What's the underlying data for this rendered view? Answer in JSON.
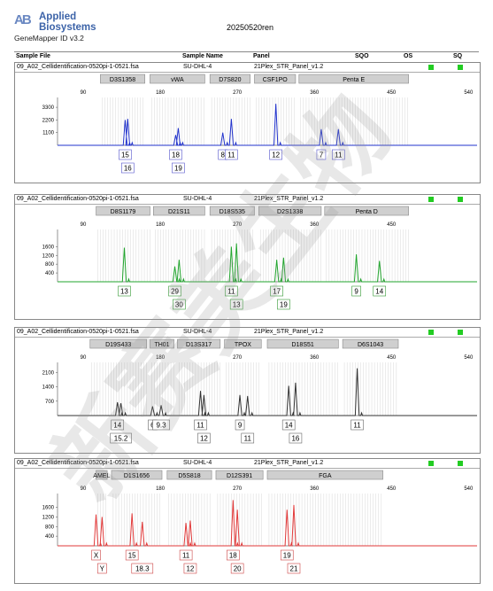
{
  "brand": {
    "mark": "AB",
    "line1": "Applied",
    "line2": "Biosystems",
    "app": "GeneMapper ID v3.2"
  },
  "run_name": "20250520ren",
  "header": {
    "sample_file": "Sample File",
    "sample_name": "Sample Name",
    "panel": "Panel",
    "sqo": "SQO",
    "os": "OS",
    "sq": "SQ"
  },
  "colors": {
    "blue": "#2233cc",
    "green": "#22a52e",
    "black": "#333333",
    "red": "#e23a3a",
    "flag": "#22cc22"
  },
  "panels": [
    {
      "file": "09_A02_Cellidentification-0520pi-1-0521.fsa",
      "name": "SU-DHL-4",
      "panel": "21Plex_STR_Panel_v1.2"
    },
    {
      "file": "09_A02_Cellidentification-0520pi-1-0521.fsa",
      "name": "SU-DHL-4",
      "panel": "21Plex_STR_Panel_v1.2"
    },
    {
      "file": "09_A02_Cellidentification-0520pi-1-0521.fsa",
      "name": "SU-DHL-4",
      "panel": "21Plex_STR_Panel_v1.2"
    },
    {
      "file": "09_A02_Cellidentification-0520pi-1-0521.fsa",
      "name": "SU-DHL-4",
      "panel": "21Plex_STR_Panel_v1.2"
    }
  ],
  "watermark": "新赛美生物",
  "chart_data": [
    {
      "type": "line",
      "color": "blue",
      "xlim": [
        60,
        550
      ],
      "x_ticks": [
        90,
        180,
        270,
        360,
        450,
        540
      ],
      "ylim": [
        0,
        4000
      ],
      "y_ticks": [
        1100,
        2200,
        3300
      ],
      "markers": [
        {
          "name": "D3S1358",
          "start": 110,
          "end": 162
        },
        {
          "name": "vWA",
          "start": 168,
          "end": 232
        },
        {
          "name": "D7S820",
          "start": 238,
          "end": 285
        },
        {
          "name": "CSF1PO",
          "start": 290,
          "end": 338
        },
        {
          "name": "Penta E",
          "start": 342,
          "end": 470
        }
      ],
      "peaks": [
        {
          "x": 139,
          "y": 2200,
          "label": "15",
          "row": 1
        },
        {
          "x": 142,
          "y": 2300,
          "label": "16",
          "row": 2
        },
        {
          "x": 198,
          "y": 900,
          "label": "18",
          "row": 1
        },
        {
          "x": 201,
          "y": 1500,
          "label": "19",
          "row": 2
        },
        {
          "x": 253,
          "y": 1100,
          "label": "8",
          "row": 1
        },
        {
          "x": 263,
          "y": 2300,
          "label": "11",
          "row": 1
        },
        {
          "x": 315,
          "y": 3600,
          "label": "12",
          "row": 1
        },
        {
          "x": 368,
          "y": 1400,
          "label": "7",
          "row": 1
        },
        {
          "x": 388,
          "y": 1400,
          "label": "11",
          "row": 1
        }
      ]
    },
    {
      "type": "line",
      "color": "green",
      "xlim": [
        60,
        550
      ],
      "x_ticks": [
        90,
        180,
        270,
        360,
        450
      ],
      "ylim": [
        0,
        2300
      ],
      "y_ticks": [
        400,
        800,
        1200,
        1600
      ],
      "markers": [
        {
          "name": "D8S1179",
          "start": 105,
          "end": 168
        },
        {
          "name": "D21S11",
          "start": 172,
          "end": 232
        },
        {
          "name": "D18S535",
          "start": 238,
          "end": 290
        },
        {
          "name": "D2S1338",
          "start": 295,
          "end": 368
        },
        {
          "name": "Penta D",
          "start": 372,
          "end": 470
        }
      ],
      "peaks": [
        {
          "x": 138,
          "y": 1550,
          "label": "13",
          "row": 1
        },
        {
          "x": 197,
          "y": 700,
          "label": "29",
          "row": 1
        },
        {
          "x": 202,
          "y": 1000,
          "label": "30",
          "row": 2
        },
        {
          "x": 263,
          "y": 1600,
          "label": "11",
          "row": 1
        },
        {
          "x": 269,
          "y": 1750,
          "label": "13",
          "row": 2
        },
        {
          "x": 316,
          "y": 1000,
          "label": "17",
          "row": 1
        },
        {
          "x": 324,
          "y": 1100,
          "label": "19",
          "row": 2
        },
        {
          "x": 409,
          "y": 1250,
          "label": "9",
          "row": 1
        },
        {
          "x": 436,
          "y": 950,
          "label": "14",
          "row": 1
        }
      ]
    },
    {
      "type": "line",
      "color": "black",
      "xlim": [
        60,
        550
      ],
      "x_ticks": [
        90,
        180,
        270,
        360,
        450,
        540
      ],
      "ylim": [
        0,
        2500
      ],
      "y_ticks": [
        700,
        1400,
        2100
      ],
      "markers": [
        {
          "name": "D19S433",
          "start": 98,
          "end": 164
        },
        {
          "name": "TH01",
          "start": 168,
          "end": 196
        },
        {
          "name": "D13S317",
          "start": 200,
          "end": 250
        },
        {
          "name": "TPOX",
          "start": 255,
          "end": 298
        },
        {
          "name": "D18S51",
          "start": 305,
          "end": 388
        },
        {
          "name": "D6S1043",
          "start": 393,
          "end": 458
        }
      ],
      "peaks": [
        {
          "x": 130,
          "y": 650,
          "label": "14",
          "row": 1
        },
        {
          "x": 134,
          "y": 600,
          "label": "15.2",
          "row": 2
        },
        {
          "x": 171,
          "y": 450,
          "label": "6",
          "row": 1
        },
        {
          "x": 181,
          "y": 500,
          "label": "9.3",
          "row": 1
        },
        {
          "x": 227,
          "y": 1200,
          "label": "11",
          "row": 1
        },
        {
          "x": 231,
          "y": 1000,
          "label": "12",
          "row": 2
        },
        {
          "x": 273,
          "y": 1000,
          "label": "9",
          "row": 1
        },
        {
          "x": 282,
          "y": 950,
          "label": "11",
          "row": 2
        },
        {
          "x": 330,
          "y": 1450,
          "label": "14",
          "row": 1
        },
        {
          "x": 338,
          "y": 1600,
          "label": "16",
          "row": 2
        },
        {
          "x": 410,
          "y": 2300,
          "label": "11",
          "row": 1
        }
      ]
    },
    {
      "type": "line",
      "color": "red",
      "xlim": [
        60,
        550
      ],
      "x_ticks": [
        90,
        180,
        270,
        360,
        450,
        540
      ],
      "ylim": [
        0,
        2100
      ],
      "y_ticks": [
        400,
        800,
        1200,
        1600
      ],
      "markers": [
        {
          "name": "AMEL",
          "start": 105,
          "end": 118
        },
        {
          "name": "D1S1656",
          "start": 123,
          "end": 182
        },
        {
          "name": "D5S818",
          "start": 188,
          "end": 240
        },
        {
          "name": "D12S391",
          "start": 245,
          "end": 300
        },
        {
          "name": "FGA",
          "start": 305,
          "end": 440
        }
      ],
      "peaks": [
        {
          "x": 105,
          "y": 1300,
          "label": "X",
          "row": 1
        },
        {
          "x": 112,
          "y": 1200,
          "label": "Y",
          "row": 2
        },
        {
          "x": 147,
          "y": 1350,
          "label": "15",
          "row": 1
        },
        {
          "x": 159,
          "y": 1000,
          "label": "18.3",
          "row": 2
        },
        {
          "x": 210,
          "y": 950,
          "label": "11",
          "row": 1
        },
        {
          "x": 215,
          "y": 1050,
          "label": "12",
          "row": 2
        },
        {
          "x": 265,
          "y": 1900,
          "label": "18",
          "row": 1
        },
        {
          "x": 270,
          "y": 1500,
          "label": "20",
          "row": 2
        },
        {
          "x": 328,
          "y": 1500,
          "label": "19",
          "row": 1
        },
        {
          "x": 336,
          "y": 1700,
          "label": "21",
          "row": 2
        }
      ]
    }
  ]
}
